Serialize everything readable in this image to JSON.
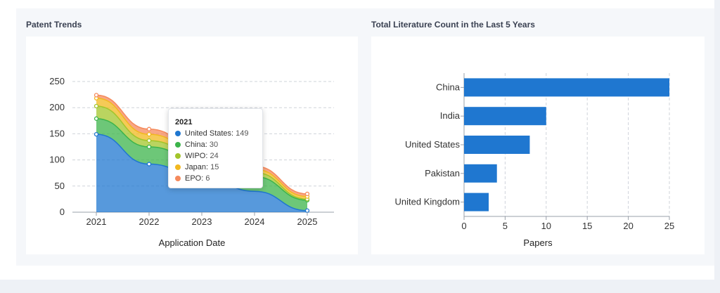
{
  "left_panel": {
    "title": "Patent Trends",
    "tooltip": {
      "title": "2021",
      "rows": [
        {
          "name": "United States",
          "value": "149",
          "color": "#1f77d0"
        },
        {
          "name": "China",
          "value": "30",
          "color": "#3cb44b"
        },
        {
          "name": "WIPO",
          "value": "24",
          "color": "#a3c52b"
        },
        {
          "name": "Japan",
          "value": "15",
          "color": "#f2b81f"
        },
        {
          "name": "EPO",
          "value": "6",
          "color": "#f58a5c"
        }
      ]
    }
  },
  "right_panel": {
    "title": "Total Literature Count in the Last 5 Years"
  },
  "chart_data": [
    {
      "type": "area",
      "stacked": true,
      "x": [
        "2021",
        "2022",
        "2023",
        "2024",
        "2025"
      ],
      "xlabel": "Application Date",
      "ylabel": "",
      "ylim": [
        0,
        250
      ],
      "yticks": [
        0,
        50,
        100,
        150,
        200,
        250
      ],
      "grid": true,
      "series": [
        {
          "name": "United States",
          "color": "#1f77d0",
          "values": [
            149,
            92,
            68,
            40,
            3
          ]
        },
        {
          "name": "China",
          "color": "#3cb44b",
          "values": [
            30,
            33,
            30,
            28,
            20
          ]
        },
        {
          "name": "WIPO",
          "color": "#a3c52b",
          "values": [
            24,
            12,
            10,
            8,
            2
          ]
        },
        {
          "name": "Japan",
          "color": "#f2b81f",
          "values": [
            15,
            12,
            7,
            6,
            5
          ]
        },
        {
          "name": "EPO",
          "color": "#f58a5c",
          "values": [
            6,
            10,
            5,
            6,
            5
          ]
        }
      ]
    },
    {
      "type": "bar",
      "orientation": "horizontal",
      "categories": [
        "China",
        "India",
        "United States",
        "Pakistan",
        "United Kingdom"
      ],
      "values": [
        25,
        10,
        8,
        4,
        3
      ],
      "xlabel": "Papers",
      "ylabel": "",
      "xlim": [
        0,
        25
      ],
      "xticks": [
        0,
        5,
        10,
        15,
        20,
        25
      ],
      "grid": true,
      "color": "#1f77d0"
    }
  ]
}
